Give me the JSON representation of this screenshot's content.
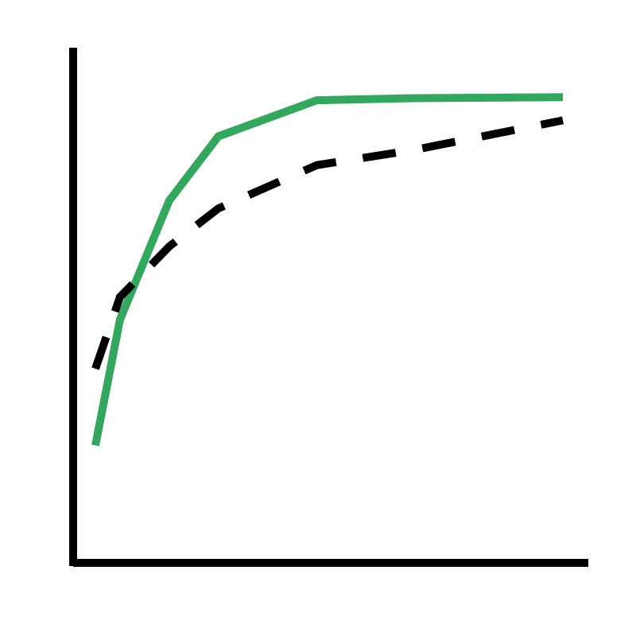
{
  "chart_data": {
    "type": "line",
    "title": "",
    "xlabel": "",
    "ylabel": "",
    "xlim": [
      0,
      100
    ],
    "ylim": [
      0,
      100
    ],
    "grid": false,
    "legend": "none",
    "series": [
      {
        "style": "solid",
        "color": "#34A65F",
        "points": [
          [
            5,
            22.8
          ],
          [
            10,
            47.2
          ],
          [
            20,
            70.3
          ],
          [
            30,
            82.8
          ],
          [
            50,
            89.8
          ],
          [
            70,
            90.2
          ],
          [
            100,
            90.4
          ]
        ]
      },
      {
        "style": "dashed",
        "color": "#000000",
        "points": [
          [
            5,
            37.7
          ],
          [
            10,
            51.6
          ],
          [
            20,
            61.4
          ],
          [
            30,
            68.8
          ],
          [
            50,
            77.2
          ],
          [
            70,
            80.2
          ],
          [
            100,
            85.9
          ]
        ]
      }
    ]
  }
}
